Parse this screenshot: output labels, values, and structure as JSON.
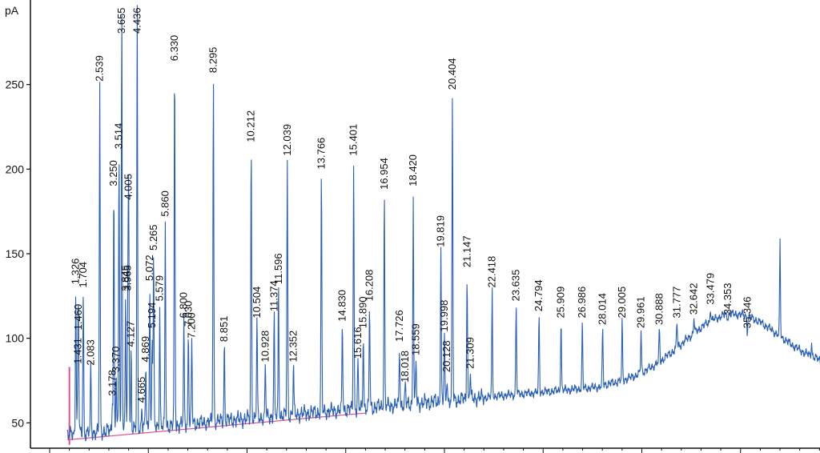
{
  "chart_data": {
    "type": "line",
    "ylabel": "pA",
    "ylim": [
      35,
      300
    ],
    "xlim": [
      0,
      40
    ],
    "y_ticks": [
      50,
      100,
      150,
      200,
      250
    ],
    "x_tick_labels_visible": false,
    "grid": false,
    "legend": "none",
    "colors": {
      "trace": "#2a5fb8",
      "baseline": "#e0508c",
      "axis": "#111111",
      "label": "#111111"
    },
    "series": [
      {
        "peaks": [
          {
            "x": 1.326,
            "y": 130
          },
          {
            "x": 1.431,
            "y": 83
          },
          {
            "x": 1.46,
            "y": 103
          },
          {
            "x": 1.704,
            "y": 128
          },
          {
            "x": 2.083,
            "y": 82
          },
          {
            "x": 2.539,
            "y": 250
          },
          {
            "x": 3.178,
            "y": 64
          },
          {
            "x": 3.25,
            "y": 188
          },
          {
            "x": 3.37,
            "y": 78
          },
          {
            "x": 3.514,
            "y": 210
          },
          {
            "x": 3.655,
            "y": 300
          },
          {
            "x": 3.845,
            "y": 126
          },
          {
            "x": 3.965,
            "y": 126
          },
          {
            "x": 4.005,
            "y": 180
          },
          {
            "x": 4.127,
            "y": 93
          },
          {
            "x": 4.436,
            "y": 300
          },
          {
            "x": 4.665,
            "y": 60
          },
          {
            "x": 4.869,
            "y": 84
          },
          {
            "x": 5.072,
            "y": 132
          },
          {
            "x": 5.194,
            "y": 104
          },
          {
            "x": 5.265,
            "y": 150
          },
          {
            "x": 5.579,
            "y": 120
          },
          {
            "x": 5.86,
            "y": 170
          },
          {
            "x": 6.33,
            "y": 262
          },
          {
            "x": 6.8,
            "y": 110
          },
          {
            "x": 7.03,
            "y": 105
          },
          {
            "x": 7.2,
            "y": 98
          },
          {
            "x": 8.295,
            "y": 255
          },
          {
            "x": 8.851,
            "y": 96
          },
          {
            "x": 10.212,
            "y": 214
          },
          {
            "x": 10.504,
            "y": 110
          },
          {
            "x": 10.928,
            "y": 84
          },
          {
            "x": 11.374,
            "y": 114
          },
          {
            "x": 11.596,
            "y": 130
          },
          {
            "x": 12.039,
            "y": 206
          },
          {
            "x": 12.352,
            "y": 84
          },
          {
            "x": 13.766,
            "y": 198
          },
          {
            "x": 14.83,
            "y": 108
          },
          {
            "x": 15.401,
            "y": 206
          },
          {
            "x": 15.616,
            "y": 86
          },
          {
            "x": 15.89,
            "y": 104
          },
          {
            "x": 16.208,
            "y": 120
          },
          {
            "x": 16.954,
            "y": 186
          },
          {
            "x": 17.726,
            "y": 96
          },
          {
            "x": 18.42,
            "y": 188
          },
          {
            "x": 18.559,
            "y": 88
          },
          {
            "x": 18.018,
            "y": 72
          },
          {
            "x": 19.819,
            "y": 152
          },
          {
            "x": 19.998,
            "y": 102
          },
          {
            "x": 20.128,
            "y": 78
          },
          {
            "x": 20.404,
            "y": 245
          },
          {
            "x": 21.147,
            "y": 140
          },
          {
            "x": 21.309,
            "y": 80
          },
          {
            "x": 22.418,
            "y": 128
          },
          {
            "x": 23.635,
            "y": 120
          },
          {
            "x": 24.794,
            "y": 114
          },
          {
            "x": 25.909,
            "y": 110
          },
          {
            "x": 26.986,
            "y": 110
          },
          {
            "x": 28.014,
            "y": 106
          },
          {
            "x": 29.005,
            "y": 110
          },
          {
            "x": 29.961,
            "y": 104
          },
          {
            "x": 30.888,
            "y": 106
          },
          {
            "x": 31.777,
            "y": 110
          },
          {
            "x": 32.642,
            "y": 112
          },
          {
            "x": 33.479,
            "y": 118
          },
          {
            "x": 34.353,
            "y": 112
          },
          {
            "x": 35.346,
            "y": 104
          },
          {
            "x": 37.0,
            "y": 158
          },
          {
            "x": 38.6,
            "y": 98
          }
        ]
      }
    ],
    "peak_labels": [
      "1.326",
      "1.431",
      "1.460",
      "1.704",
      "2.083",
      "2.539",
      "3.178",
      "3.250",
      "3.370",
      "3.514",
      "3.655",
      "3.845",
      "3.965",
      "4.005",
      "4.127",
      "4.436",
      "4.665",
      "4.869",
      "5.072",
      "5.194",
      "5.265",
      "5.579",
      "5.860",
      "6.330",
      "6.800",
      "7.030",
      "7.200",
      "8.295",
      "8.851",
      "10.212",
      "10.504",
      "10.928",
      "11.374",
      "11.596",
      "12.039",
      "12.352",
      "13.766",
      "14.830",
      "15.401",
      "15.616",
      "15.890",
      "16.208",
      "16.954",
      "17.726",
      "18.420",
      "18.559",
      "18.018",
      "19.819",
      "19.998",
      "20.128",
      "20.404",
      "21.147",
      "21.309",
      "22.418",
      "23.635",
      "24.794",
      "25.909",
      "26.986",
      "28.014",
      "29.005",
      "29.961",
      "30.888",
      "31.777",
      "32.642",
      "33.479",
      "34.353",
      "35.346"
    ]
  }
}
